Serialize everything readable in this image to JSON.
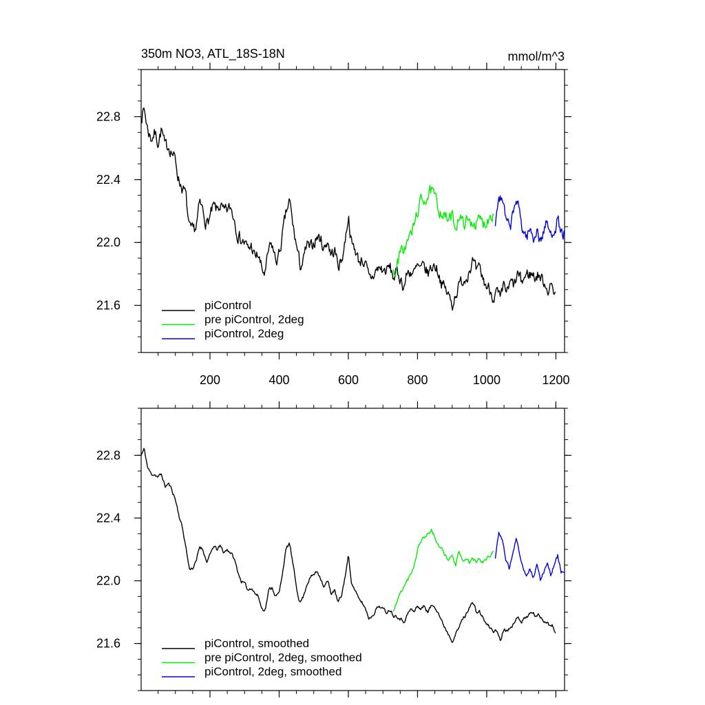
{
  "figure": {
    "title_left": "350m NO3, ATL_18S-18N",
    "title_right": "mmol/m^3"
  },
  "colors": {
    "piControl": "#000000",
    "pre_piControl_2deg": "#00ee00",
    "piControl_2deg": "#0000dd",
    "axis": "#000000",
    "background": "#ffffff"
  },
  "chart_data": [
    {
      "type": "line",
      "panel": "top",
      "title": "350m NO3, ATL_18S-18N",
      "units": "mmol/m^3",
      "xlim": [
        1,
        1225
      ],
      "ylim": [
        21.3,
        23.1
      ],
      "xticks": [
        200,
        400,
        600,
        800,
        1000,
        1200
      ],
      "yticks": [
        21.6,
        22.0,
        22.4,
        22.8
      ],
      "show_xtick_labels": true,
      "grid": false,
      "legend_position": "bottom-left",
      "noise": 0.045,
      "seed": 7,
      "series": [
        {
          "name": "piControl",
          "color_key": "piControl",
          "x": [
            1,
            10,
            20,
            30,
            40,
            50,
            60,
            70,
            80,
            90,
            100,
            110,
            120,
            130,
            140,
            150,
            160,
            170,
            180,
            190,
            200,
            210,
            220,
            230,
            240,
            250,
            260,
            270,
            280,
            290,
            300,
            310,
            320,
            330,
            340,
            350,
            360,
            370,
            380,
            390,
            400,
            410,
            420,
            430,
            440,
            450,
            460,
            470,
            480,
            490,
            500,
            510,
            520,
            530,
            540,
            550,
            560,
            570,
            580,
            590,
            600,
            610,
            620,
            630,
            640,
            650,
            660,
            670,
            680,
            690,
            700,
            710,
            720,
            730,
            740,
            750,
            760,
            770,
            780,
            790,
            800,
            810,
            820,
            830,
            840,
            850,
            860,
            870,
            880,
            890,
            900,
            910,
            920,
            930,
            940,
            950,
            960,
            970,
            980,
            990,
            1000,
            1010,
            1020,
            1030,
            1040,
            1050,
            1060,
            1070,
            1080,
            1090,
            1100,
            1110,
            1120,
            1130,
            1140,
            1150,
            1160,
            1170,
            1180,
            1190,
            1200
          ],
          "y": [
            22.8,
            22.85,
            22.72,
            22.66,
            22.7,
            22.64,
            22.72,
            22.6,
            22.62,
            22.58,
            22.52,
            22.4,
            22.35,
            22.3,
            22.08,
            22.06,
            22.1,
            22.24,
            22.2,
            22.12,
            22.16,
            22.22,
            22.2,
            22.24,
            22.18,
            22.2,
            22.22,
            22.16,
            22.06,
            22.02,
            22.0,
            21.95,
            21.98,
            21.9,
            21.92,
            21.82,
            21.8,
            21.95,
            21.98,
            21.88,
            21.92,
            22.05,
            22.18,
            22.26,
            22.1,
            21.98,
            21.85,
            21.88,
            21.98,
            21.95,
            22.0,
            22.04,
            22.02,
            21.96,
            22.02,
            21.92,
            21.95,
            21.86,
            21.88,
            22.0,
            22.18,
            21.98,
            21.96,
            21.88,
            21.9,
            21.85,
            21.76,
            21.78,
            21.82,
            21.84,
            21.82,
            21.82,
            21.84,
            21.78,
            21.8,
            21.78,
            21.72,
            21.8,
            21.82,
            21.8,
            21.84,
            21.82,
            21.84,
            21.8,
            21.84,
            21.86,
            21.82,
            21.74,
            21.7,
            21.66,
            21.6,
            21.68,
            21.72,
            21.76,
            21.78,
            21.84,
            21.88,
            21.8,
            21.82,
            21.76,
            21.72,
            21.7,
            21.66,
            21.68,
            21.62,
            21.72,
            21.68,
            21.74,
            21.72,
            21.8,
            21.74,
            21.78,
            21.8,
            21.8,
            21.78,
            21.8,
            21.76,
            21.74,
            21.7,
            21.72,
            21.68
          ]
        },
        {
          "name": "pre piControl, 2deg",
          "color_key": "pre_piControl_2deg",
          "x": [
            730,
            740,
            750,
            760,
            770,
            780,
            790,
            800,
            810,
            820,
            830,
            840,
            850,
            860,
            870,
            880,
            890,
            900,
            910,
            920,
            930,
            940,
            950,
            960,
            970,
            980,
            990,
            1000,
            1010,
            1020
          ],
          "y": [
            21.8,
            21.85,
            21.92,
            21.96,
            22.0,
            22.05,
            22.1,
            22.2,
            22.26,
            22.28,
            22.3,
            22.32,
            22.28,
            22.22,
            22.2,
            22.16,
            22.14,
            22.16,
            22.1,
            22.18,
            22.12,
            22.14,
            22.12,
            22.14,
            22.12,
            22.14,
            22.12,
            22.14,
            22.18,
            22.2
          ]
        },
        {
          "name": "piControl, 2deg",
          "color_key": "piControl_2deg",
          "x": [
            1025,
            1035,
            1045,
            1055,
            1065,
            1075,
            1085,
            1095,
            1105,
            1115,
            1125,
            1135,
            1145,
            1155,
            1165,
            1175,
            1185,
            1195,
            1205,
            1215,
            1225
          ],
          "y": [
            22.12,
            22.3,
            22.26,
            22.14,
            22.08,
            22.16,
            22.28,
            22.18,
            22.08,
            22.04,
            22.08,
            22.02,
            22.1,
            22.0,
            22.08,
            22.12,
            22.04,
            22.1,
            22.14,
            22.06,
            22.05
          ]
        }
      ],
      "legend": [
        {
          "label": "piControl",
          "color_key": "piControl"
        },
        {
          "label": "pre piControl, 2deg",
          "color_key": "pre_piControl_2deg"
        },
        {
          "label": "piControl, 2deg",
          "color_key": "piControl_2deg"
        }
      ]
    },
    {
      "type": "line",
      "panel": "bottom",
      "xlim": [
        1,
        1225
      ],
      "ylim": [
        21.3,
        23.1
      ],
      "xticks": [
        200,
        400,
        600,
        800,
        1000,
        1200
      ],
      "yticks": [
        21.6,
        22.0,
        22.4,
        22.8
      ],
      "show_xtick_labels": false,
      "grid": false,
      "legend_position": "bottom-left",
      "noise": 0.012,
      "seed": 11,
      "series": [
        {
          "name": "piControl, smoothed",
          "color_key": "piControl",
          "x": [
            1,
            10,
            20,
            30,
            40,
            50,
            60,
            70,
            80,
            90,
            100,
            110,
            120,
            130,
            140,
            150,
            160,
            170,
            180,
            190,
            200,
            210,
            220,
            230,
            240,
            250,
            260,
            270,
            280,
            290,
            300,
            310,
            320,
            330,
            340,
            350,
            360,
            370,
            380,
            390,
            400,
            410,
            420,
            430,
            440,
            450,
            460,
            470,
            480,
            490,
            500,
            510,
            520,
            530,
            540,
            550,
            560,
            570,
            580,
            590,
            600,
            610,
            620,
            630,
            640,
            650,
            660,
            670,
            680,
            690,
            700,
            710,
            720,
            730,
            740,
            750,
            760,
            770,
            780,
            790,
            800,
            810,
            820,
            830,
            840,
            850,
            860,
            870,
            880,
            890,
            900,
            910,
            920,
            930,
            940,
            950,
            960,
            970,
            980,
            990,
            1000,
            1010,
            1020,
            1030,
            1040,
            1050,
            1060,
            1070,
            1080,
            1090,
            1100,
            1110,
            1120,
            1130,
            1140,
            1150,
            1160,
            1170,
            1180,
            1190,
            1200
          ],
          "y": [
            22.8,
            22.84,
            22.72,
            22.68,
            22.68,
            22.66,
            22.68,
            22.6,
            22.62,
            22.58,
            22.52,
            22.42,
            22.34,
            22.22,
            22.08,
            22.08,
            22.12,
            22.22,
            22.2,
            22.12,
            22.16,
            22.22,
            22.2,
            22.22,
            22.18,
            22.2,
            22.18,
            22.14,
            22.06,
            22.0,
            21.98,
            21.94,
            21.96,
            21.92,
            21.9,
            21.82,
            21.82,
            21.94,
            21.96,
            21.9,
            21.92,
            22.06,
            22.2,
            22.24,
            22.1,
            21.96,
            21.86,
            21.9,
            21.98,
            22.02,
            22.04,
            22.06,
            22.02,
            21.96,
            22.0,
            21.92,
            21.94,
            21.86,
            21.9,
            22.02,
            22.16,
            21.98,
            21.94,
            21.88,
            21.86,
            21.82,
            21.76,
            21.78,
            21.82,
            21.84,
            21.82,
            21.8,
            21.82,
            21.78,
            21.78,
            21.76,
            21.74,
            21.78,
            21.82,
            21.8,
            21.84,
            21.82,
            21.84,
            21.8,
            21.84,
            21.84,
            21.8,
            21.74,
            21.7,
            21.66,
            21.62,
            21.66,
            21.7,
            21.76,
            21.78,
            21.84,
            21.86,
            21.8,
            21.8,
            21.76,
            21.72,
            21.7,
            21.68,
            21.68,
            21.62,
            21.7,
            21.68,
            21.72,
            21.72,
            21.78,
            21.74,
            21.76,
            21.78,
            21.8,
            21.78,
            21.78,
            21.76,
            21.74,
            21.72,
            21.72,
            21.66
          ]
        },
        {
          "name": "pre piControl, 2deg, smoothed",
          "color_key": "pre_piControl_2deg",
          "x": [
            730,
            740,
            750,
            760,
            770,
            780,
            790,
            800,
            810,
            820,
            830,
            840,
            850,
            860,
            870,
            880,
            890,
            900,
            910,
            920,
            930,
            940,
            950,
            960,
            970,
            980,
            990,
            1000,
            1010,
            1020
          ],
          "y": [
            21.8,
            21.86,
            21.92,
            21.96,
            22.0,
            22.04,
            22.1,
            22.2,
            22.26,
            22.28,
            22.3,
            22.32,
            22.28,
            22.22,
            22.2,
            22.16,
            22.14,
            22.16,
            22.1,
            22.18,
            22.12,
            22.14,
            22.12,
            22.14,
            22.12,
            22.14,
            22.12,
            22.14,
            22.16,
            22.2
          ]
        },
        {
          "name": "piControl, 2deg, smoothed",
          "color_key": "piControl_2deg",
          "x": [
            1025,
            1035,
            1045,
            1055,
            1065,
            1075,
            1085,
            1095,
            1105,
            1115,
            1125,
            1135,
            1145,
            1155,
            1165,
            1175,
            1185,
            1195,
            1205,
            1215,
            1225
          ],
          "y": [
            22.14,
            22.3,
            22.26,
            22.14,
            22.08,
            22.16,
            22.28,
            22.18,
            22.08,
            22.04,
            22.08,
            22.02,
            22.1,
            22.0,
            22.06,
            22.12,
            22.04,
            22.1,
            22.16,
            22.06,
            22.05
          ]
        }
      ],
      "legend": [
        {
          "label": "piControl, smoothed",
          "color_key": "piControl"
        },
        {
          "label": "pre piControl, 2deg, smoothed",
          "color_key": "pre_piControl_2deg"
        },
        {
          "label": "piControl, 2deg, smoothed",
          "color_key": "piControl_2deg"
        }
      ]
    }
  ]
}
